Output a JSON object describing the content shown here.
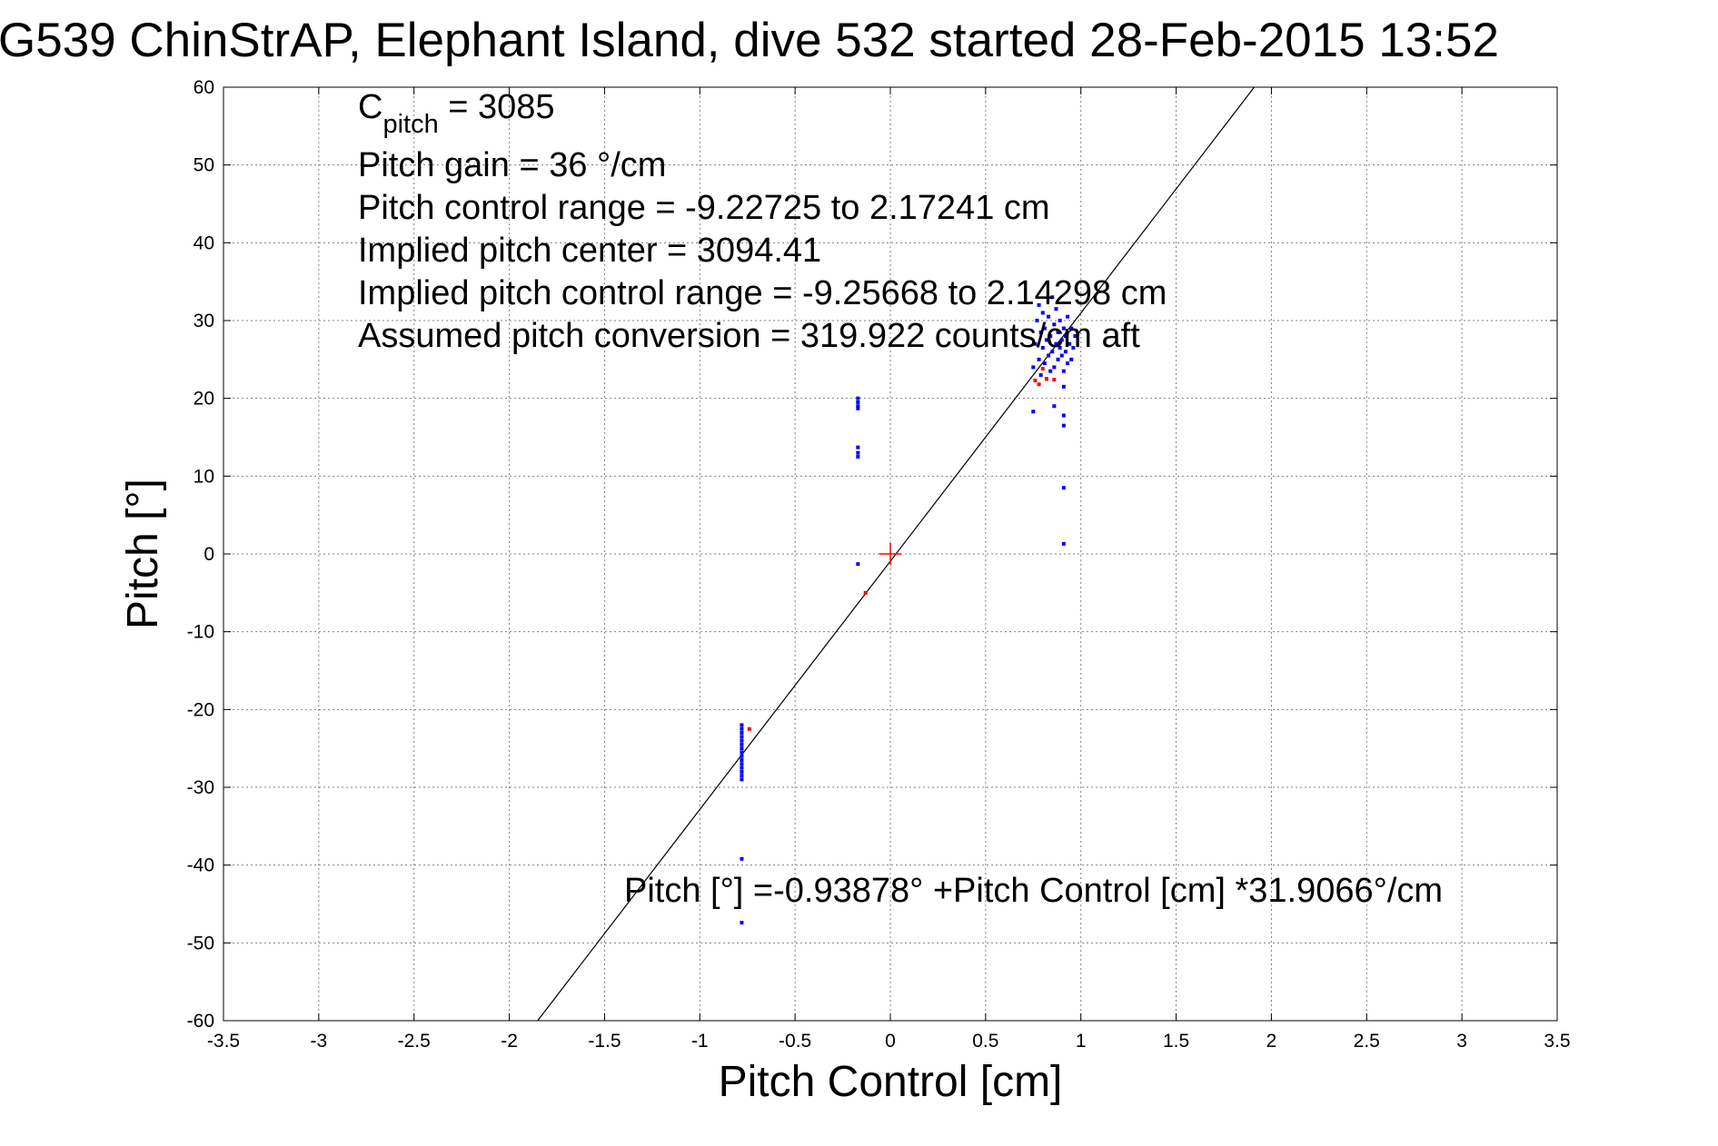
{
  "chart_data": {
    "type": "scatter",
    "title": "G539 ChinStrAP, Elephant Island, dive 532 started 28-Feb-2015 13:52",
    "xlabel": "Pitch Control [cm]",
    "ylabel": "Pitch [°]",
    "xlim": [
      -3.5,
      3.5
    ],
    "ylim": [
      -60,
      60
    ],
    "grid": true,
    "x_ticks": [
      -3.5,
      -3,
      -2.5,
      -2,
      -1.5,
      -1,
      -0.5,
      0,
      0.5,
      1,
      1.5,
      2,
      2.5,
      3,
      3.5
    ],
    "x_tick_labels": [
      "-3.5",
      "-3",
      "-2.5",
      "-2",
      "-1.5",
      "-1",
      "-0.5",
      "0",
      "0.5",
      "1",
      "1.5",
      "2",
      "2.5",
      "3",
      "3.5"
    ],
    "y_ticks": [
      60,
      50,
      40,
      30,
      20,
      10,
      0,
      -10,
      -20,
      -30,
      -40,
      -50,
      -60
    ],
    "y_tick_labels": [
      "60",
      "50",
      "40",
      "30",
      "20",
      "10",
      "0",
      "-10",
      "-20",
      "-30",
      "-40",
      "-50",
      "-60"
    ],
    "annotations": {
      "c_pitch_label": "C",
      "c_pitch_sub": "pitch",
      "c_pitch_value": " = 3085",
      "pitch_gain": "Pitch gain = 36 °/cm",
      "pitch_control_range": "Pitch control range = -9.22725 to 2.17241 cm",
      "implied_pitch_center": "Implied pitch center = 3094.41",
      "implied_pitch_control_range": "Implied pitch control range = -9.25668 to 2.14298 cm",
      "assumed_pitch_conversion": "Assumed pitch conversion = 319.922 counts/cm aft",
      "fit_equation": "Pitch [°] =-0.93878° +Pitch Control [cm] *31.9066°/cm"
    },
    "fit_line": {
      "intercept": -0.93878,
      "slope": 31.9066,
      "color": "#000000"
    },
    "center_marker": {
      "x": 0,
      "y": 0,
      "color": "#ff0000"
    },
    "series": [
      {
        "color": "#0000ff",
        "points": [
          [
            -0.78,
            -22
          ],
          [
            -0.78,
            -22.5
          ],
          [
            -0.78,
            -23
          ],
          [
            -0.78,
            -23.5
          ],
          [
            -0.78,
            -24
          ],
          [
            -0.78,
            -24.5
          ],
          [
            -0.78,
            -25
          ],
          [
            -0.78,
            -25.5
          ],
          [
            -0.78,
            -26
          ],
          [
            -0.78,
            -26.5
          ],
          [
            -0.78,
            -27
          ],
          [
            -0.78,
            -27.5
          ],
          [
            -0.78,
            -28
          ],
          [
            -0.78,
            -28.5
          ],
          [
            -0.78,
            -29
          ],
          [
            -0.78,
            -39.2
          ],
          [
            -0.78,
            -47.4
          ],
          [
            -0.17,
            20
          ],
          [
            -0.17,
            19.5
          ],
          [
            -0.17,
            19
          ],
          [
            -0.17,
            18.7
          ],
          [
            -0.17,
            13.7
          ],
          [
            -0.17,
            13
          ],
          [
            -0.17,
            12.5
          ],
          [
            -0.17,
            -1.3
          ],
          [
            0.75,
            18.3
          ],
          [
            0.75,
            24
          ],
          [
            0.76,
            27
          ],
          [
            0.77,
            30
          ],
          [
            0.78,
            32
          ],
          [
            0.78,
            25
          ],
          [
            0.79,
            28.5
          ],
          [
            0.79,
            23
          ],
          [
            0.8,
            26.5
          ],
          [
            0.8,
            31
          ],
          [
            0.81,
            29
          ],
          [
            0.81,
            24.5
          ],
          [
            0.82,
            27.5
          ],
          [
            0.82,
            22.5
          ],
          [
            0.83,
            30.5
          ],
          [
            0.83,
            25.5
          ],
          [
            0.84,
            28
          ],
          [
            0.84,
            23.5
          ],
          [
            0.85,
            33
          ],
          [
            0.85,
            26
          ],
          [
            0.86,
            29.5
          ],
          [
            0.86,
            24
          ],
          [
            0.87,
            27
          ],
          [
            0.87,
            31.5
          ],
          [
            0.88,
            25
          ],
          [
            0.88,
            28.5
          ],
          [
            0.89,
            26.5
          ],
          [
            0.89,
            30
          ],
          [
            0.9,
            27.5
          ],
          [
            0.9,
            25.5
          ],
          [
            0.91,
            29
          ],
          [
            0.91,
            23.5
          ],
          [
            0.92,
            26
          ],
          [
            0.92,
            28
          ],
          [
            0.93,
            30.5
          ],
          [
            0.93,
            24.5
          ],
          [
            0.94,
            27
          ],
          [
            0.95,
            29
          ],
          [
            0.95,
            25
          ],
          [
            0.96,
            26.5
          ],
          [
            0.97,
            28
          ],
          [
            0.86,
            19
          ],
          [
            0.91,
            17.8
          ],
          [
            0.91,
            16.5
          ],
          [
            0.91,
            21.5
          ],
          [
            0.91,
            8.5
          ],
          [
            0.91,
            1.3
          ]
        ]
      },
      {
        "color": "#ff0000",
        "points": [
          [
            -0.74,
            -22.5
          ],
          [
            -0.13,
            -5
          ],
          [
            0.76,
            22.3
          ],
          [
            0.78,
            21.8
          ],
          [
            0.82,
            22.5
          ],
          [
            0.86,
            22.4
          ],
          [
            0.8,
            23.8
          ]
        ]
      }
    ]
  }
}
